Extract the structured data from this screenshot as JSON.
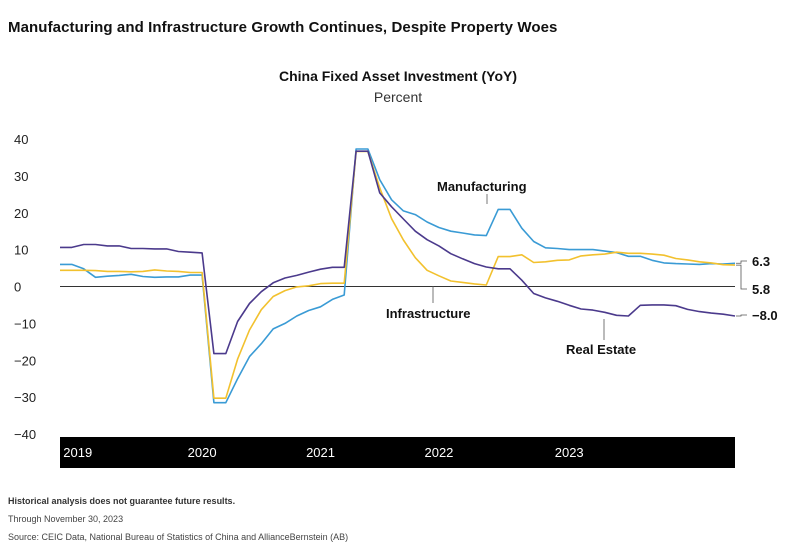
{
  "headline": "Manufacturing and Infrastructure Growth Continues, Despite Property Woes",
  "footnotes": {
    "disclaimer": "Historical analysis does not guarantee future results.",
    "through": "Through November 30, 2023",
    "source": "Source: CEIC Data, National Bureau of Statistics of China and AllianceBernstein (AB)"
  },
  "colors": {
    "manufacturing": "#3a9bd5",
    "infrastructure": "#f2c12e",
    "real_estate": "#4b3a8c"
  },
  "chart_data": {
    "type": "line",
    "title": "China Fixed Asset Investment (YoY)",
    "subtitle": "Percent",
    "ylim": [
      -40,
      40
    ],
    "yticks": [
      40,
      30,
      20,
      10,
      0,
      -10,
      -20,
      -30,
      -40
    ],
    "ytick_labels": [
      "40",
      "30",
      "20",
      "10",
      "0",
      "−10",
      "−20",
      "−30",
      "−40"
    ],
    "year_labels": [
      {
        "label": "2019",
        "x": 1.5
      },
      {
        "label": "2020",
        "x": 12
      },
      {
        "label": "2021",
        "x": 22
      },
      {
        "label": "2022",
        "x": 32
      },
      {
        "label": "2023",
        "x": 43
      }
    ],
    "x_unit": "months since Jan 2019",
    "series": [
      {
        "name": "Manufacturing",
        "key": "manufacturing",
        "end_label": "6.3",
        "values": [
          [
            0,
            6
          ],
          [
            1,
            6
          ],
          [
            2,
            4.8
          ],
          [
            3,
            2.5
          ],
          [
            4,
            2.8
          ],
          [
            5,
            3
          ],
          [
            6,
            3.3
          ],
          [
            7,
            2.7
          ],
          [
            8,
            2.5
          ],
          [
            9,
            2.6
          ],
          [
            10,
            2.6
          ],
          [
            11,
            3.1
          ],
          [
            12,
            3.1
          ],
          [
            13,
            -31.5
          ],
          [
            14,
            -31.5
          ],
          [
            15,
            -25
          ],
          [
            16,
            -19
          ],
          [
            17,
            -15.5
          ],
          [
            18,
            -11.5
          ],
          [
            19,
            -10
          ],
          [
            20,
            -8
          ],
          [
            21,
            -6.5
          ],
          [
            22,
            -5.5
          ],
          [
            23,
            -3.5
          ],
          [
            24,
            -2.3
          ],
          [
            25,
            37.3
          ],
          [
            26,
            37.3
          ],
          [
            27,
            29
          ],
          [
            28,
            23.5
          ],
          [
            29,
            20.5
          ],
          [
            30,
            19.5
          ],
          [
            31,
            17.5
          ],
          [
            32,
            16
          ],
          [
            33,
            15
          ],
          [
            34,
            14.5
          ],
          [
            35,
            14
          ],
          [
            36,
            13.8
          ],
          [
            37,
            20.9
          ],
          [
            38,
            20.9
          ],
          [
            39,
            15.8
          ],
          [
            40,
            12.2
          ],
          [
            41,
            10.5
          ],
          [
            42,
            10.3
          ],
          [
            43,
            10
          ],
          [
            44,
            10
          ],
          [
            45,
            10
          ],
          [
            46,
            9.6
          ],
          [
            47,
            9.2
          ],
          [
            48,
            8.2
          ],
          [
            49,
            8.2
          ],
          [
            50,
            7.1
          ],
          [
            51,
            6.4
          ],
          [
            52,
            6.2
          ],
          [
            53,
            6.1
          ],
          [
            54,
            6
          ],
          [
            55,
            6.2
          ],
          [
            56,
            6.1
          ],
          [
            57,
            6.3
          ]
        ]
      },
      {
        "name": "Infrastructure",
        "key": "infrastructure",
        "end_label": "5.8",
        "values": [
          [
            0,
            4.4
          ],
          [
            1,
            4.4
          ],
          [
            2,
            4.4
          ],
          [
            3,
            4.3
          ],
          [
            4,
            4.1
          ],
          [
            5,
            4.1
          ],
          [
            6,
            4
          ],
          [
            7,
            4.1
          ],
          [
            8,
            4.5
          ],
          [
            9,
            4.2
          ],
          [
            10,
            4.1
          ],
          [
            11,
            3.8
          ],
          [
            12,
            3.8
          ],
          [
            13,
            -30.3
          ],
          [
            14,
            -30.3
          ],
          [
            15,
            -19.7
          ],
          [
            16,
            -11.8
          ],
          [
            17,
            -6.3
          ],
          [
            18,
            -2.7
          ],
          [
            19,
            -1.1
          ],
          [
            20,
            -0.1
          ],
          [
            21,
            0.2
          ],
          [
            22,
            0.8
          ],
          [
            23,
            0.9
          ],
          [
            24,
            0.9
          ],
          [
            25,
            36.6
          ],
          [
            26,
            36.6
          ],
          [
            27,
            26.8
          ],
          [
            28,
            18.4
          ],
          [
            29,
            12.6
          ],
          [
            30,
            7.8
          ],
          [
            31,
            4.4
          ],
          [
            32,
            2.9
          ],
          [
            33,
            1.5
          ],
          [
            34,
            1.1
          ],
          [
            35,
            0.7
          ],
          [
            36,
            0.4
          ],
          [
            37,
            8.1
          ],
          [
            38,
            8.1
          ],
          [
            39,
            8.6
          ],
          [
            40,
            6.5
          ],
          [
            41,
            6.7
          ],
          [
            42,
            7.1
          ],
          [
            43,
            7.2
          ],
          [
            44,
            8.3
          ],
          [
            45,
            8.6
          ],
          [
            46,
            8.8
          ],
          [
            47,
            9.3
          ],
          [
            48,
            9
          ],
          [
            49,
            9
          ],
          [
            50,
            8.8
          ],
          [
            51,
            8.5
          ],
          [
            52,
            7.6
          ],
          [
            53,
            7.2
          ],
          [
            54,
            6.7
          ],
          [
            55,
            6.4
          ],
          [
            56,
            5.9
          ],
          [
            57,
            5.8
          ]
        ]
      },
      {
        "name": "Real Estate",
        "key": "real_estate",
        "end_label": "−8.0",
        "values": [
          [
            0,
            10.6
          ],
          [
            1,
            10.6
          ],
          [
            2,
            11.4
          ],
          [
            3,
            11.4
          ],
          [
            4,
            11
          ],
          [
            5,
            11
          ],
          [
            6,
            10.3
          ],
          [
            7,
            10.3
          ],
          [
            8,
            10.2
          ],
          [
            9,
            10.2
          ],
          [
            10,
            9.5
          ],
          [
            11,
            9.3
          ],
          [
            12,
            9.1
          ],
          [
            13,
            -18.2
          ],
          [
            14,
            -18.2
          ],
          [
            15,
            -9.5
          ],
          [
            16,
            -4.6
          ],
          [
            17,
            -1.4
          ],
          [
            18,
            1
          ],
          [
            19,
            2.3
          ],
          [
            20,
            3
          ],
          [
            21,
            3.9
          ],
          [
            22,
            4.7
          ],
          [
            23,
            5.2
          ],
          [
            24,
            5.2
          ],
          [
            25,
            36.7
          ],
          [
            26,
            36.7
          ],
          [
            27,
            25.4
          ],
          [
            28,
            21.6
          ],
          [
            29,
            18.3
          ],
          [
            30,
            15
          ],
          [
            31,
            12.7
          ],
          [
            32,
            11
          ],
          [
            33,
            8.9
          ],
          [
            34,
            7.5
          ],
          [
            35,
            6.2
          ],
          [
            36,
            5.3
          ],
          [
            37,
            4.8
          ],
          [
            38,
            4.8
          ],
          [
            39,
            1.7
          ],
          [
            40,
            -1.9
          ],
          [
            41,
            -3.1
          ],
          [
            42,
            -4
          ],
          [
            43,
            -5.1
          ],
          [
            44,
            -6.1
          ],
          [
            45,
            -6.4
          ],
          [
            46,
            -7
          ],
          [
            47,
            -7.8
          ],
          [
            48,
            -8
          ],
          [
            49,
            -5.1
          ],
          [
            50,
            -5
          ],
          [
            51,
            -5
          ],
          [
            52,
            -5.2
          ],
          [
            53,
            -6.2
          ],
          [
            54,
            -6.8
          ],
          [
            55,
            -7.2
          ],
          [
            56,
            -7.5
          ],
          [
            57,
            -8
          ]
        ]
      }
    ],
    "annotations": [
      {
        "text": "Manufacturing",
        "series": "manufacturing"
      },
      {
        "text": "Infrastructure",
        "series": "infrastructure"
      },
      {
        "text": "Real Estate",
        "series": "real_estate"
      }
    ]
  }
}
